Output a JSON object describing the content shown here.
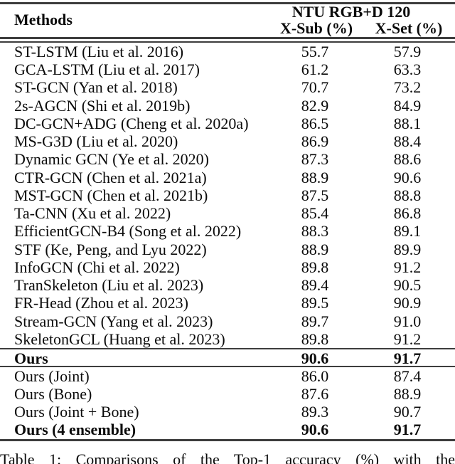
{
  "table": {
    "header": {
      "methods_label": "Methods",
      "group_label": "NTU RGB+D 120",
      "col1_label": "X-Sub (%)",
      "col2_label": "X-Set (%)"
    },
    "rows_main": [
      {
        "method": "ST-LSTM (Liu et al. 2016)",
        "xsub": "55.7",
        "xset": "57.9",
        "bold": false
      },
      {
        "method": "GCA-LSTM (Liu et al. 2017)",
        "xsub": "61.2",
        "xset": "63.3",
        "bold": false
      },
      {
        "method": "ST-GCN (Yan et al. 2018)",
        "xsub": "70.7",
        "xset": "73.2",
        "bold": false
      },
      {
        "method": "2s-AGCN (Shi et al. 2019b)",
        "xsub": "82.9",
        "xset": "84.9",
        "bold": false
      },
      {
        "method": "DC-GCN+ADG (Cheng et al. 2020a)",
        "xsub": "86.5",
        "xset": "88.1",
        "bold": false
      },
      {
        "method": "MS-G3D (Liu et al. 2020)",
        "xsub": "86.9",
        "xset": "88.4",
        "bold": false
      },
      {
        "method": "Dynamic GCN (Ye et al. 2020)",
        "xsub": "87.3",
        "xset": "88.6",
        "bold": false
      },
      {
        "method": "CTR-GCN (Chen et al. 2021a)",
        "xsub": "88.9",
        "xset": "90.6",
        "bold": false
      },
      {
        "method": "MST-GCN (Chen et al. 2021b)",
        "xsub": "87.5",
        "xset": "88.8",
        "bold": false
      },
      {
        "method": "Ta-CNN (Xu et al. 2022)",
        "xsub": "85.4",
        "xset": "86.8",
        "bold": false
      },
      {
        "method": "EfficientGCN-B4 (Song et al. 2022)",
        "xsub": "88.3",
        "xset": "89.1",
        "bold": false
      },
      {
        "method": "STF (Ke, Peng, and Lyu 2022)",
        "xsub": "88.9",
        "xset": "89.9",
        "bold": false
      },
      {
        "method": "InfoGCN (Chi et al. 2022)",
        "xsub": "89.8",
        "xset": "91.2",
        "bold": false
      },
      {
        "method": "TranSkeleton (Liu et al. 2023)",
        "xsub": "89.4",
        "xset": "90.5",
        "bold": false
      },
      {
        "method": "FR-Head (Zhou et al. 2023)",
        "xsub": "89.5",
        "xset": "90.9",
        "bold": false
      },
      {
        "method": "Stream-GCN (Yang et al. 2023)",
        "xsub": "89.7",
        "xset": "91.0",
        "bold": false
      },
      {
        "method": "SkeletonGCL (Huang et al. 2023)",
        "xsub": "89.8",
        "xset": "91.2",
        "bold": false
      }
    ],
    "row_ours": {
      "method": "Ours",
      "xsub": "90.6",
      "xset": "91.7",
      "bold": true
    },
    "rows_ablation": [
      {
        "method": "Ours (Joint)",
        "xsub": "86.0",
        "xset": "87.4",
        "bold": false
      },
      {
        "method": "Ours (Bone)",
        "xsub": "87.6",
        "xset": "88.9",
        "bold": false
      },
      {
        "method": "Ours (Joint + Bone)",
        "xsub": "89.3",
        "xset": "90.7",
        "bold": false
      },
      {
        "method": "Ours (4 ensemble)",
        "xsub": "90.6",
        "xset": "91.7",
        "bold": true
      }
    ]
  },
  "caption": "Table 1: Comparisons of the Top-1 accuracy (%) with the",
  "colors": {
    "background": "#ffffff",
    "text": "#0b0b0b",
    "rule": "#3d3d3d"
  }
}
